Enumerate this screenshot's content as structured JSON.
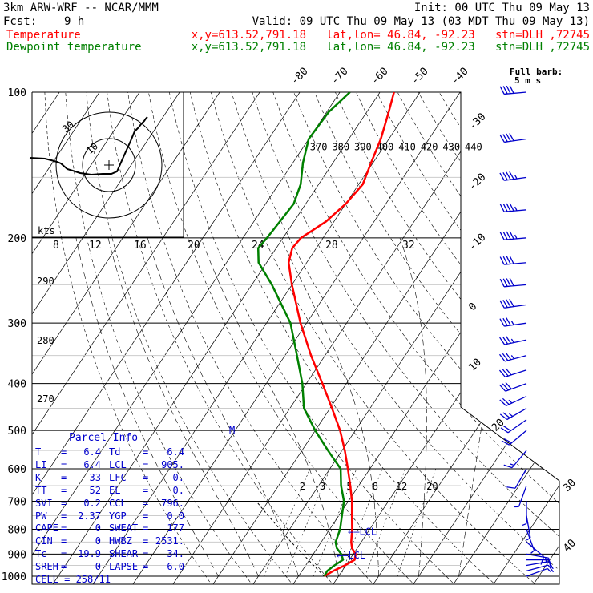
{
  "header": {
    "model": "3km ARW-WRF -- NCAR/MMM",
    "init": "Init: 00 UTC Thu 09 May 13",
    "fcst_label": "Fcst:",
    "fcst_value": "9 h",
    "valid": "Valid: 09 UTC Thu 09 May 13 (03 MDT Thu 09 May 13)",
    "temp_label": "Temperature",
    "dew_label": "Dewpoint temperature",
    "location": "x,y=613.52,791.18   lat,lon= 46.84, -92.23   stn=DLH ,72745"
  },
  "colors": {
    "temperature": "#ff0000",
    "dewpoint": "#008000",
    "hodograph": "#000000",
    "barbs": "#0000cc",
    "parcel_info": "#0000cc"
  },
  "chart_data": {
    "type": "skew-t",
    "pressure_levels": [
      100,
      200,
      300,
      400,
      500,
      600,
      700,
      800,
      900,
      1000
    ],
    "temperature_ticks": [
      -80,
      -70,
      -60,
      -50,
      -40,
      -30,
      -20,
      -10,
      0,
      10,
      20,
      30,
      40
    ],
    "theta_labels": [
      370,
      380,
      390,
      400,
      410,
      420,
      430,
      440
    ],
    "theta_labels_left": [
      290,
      280,
      270
    ],
    "mixing_ratio_labels": [
      2,
      3,
      5,
      8,
      12,
      20
    ],
    "hodo_speed_labels": [
      8,
      12,
      16,
      20,
      24,
      28,
      32
    ],
    "hodo_unit": "kts",
    "hodo_ring_labels": [
      "10",
      "30"
    ],
    "barb_title": "Full barb:",
    "barb_unit": "5 m s",
    "lcl_label": "LCL",
    "m_label": "M",
    "temperature": {
      "name": "Temperature",
      "points": [
        [
          1000,
          6.4
        ],
        [
          975,
          7.8
        ],
        [
          950,
          9.8
        ],
        [
          925,
          11.3
        ],
        [
          900,
          10.6
        ],
        [
          875,
          8.7
        ],
        [
          850,
          7.5
        ],
        [
          800,
          5.6
        ],
        [
          750,
          3.3
        ],
        [
          700,
          0.9
        ],
        [
          650,
          -2.1
        ],
        [
          600,
          -5.5
        ],
        [
          550,
          -9.3
        ],
        [
          500,
          -13.8
        ],
        [
          450,
          -19.5
        ],
        [
          400,
          -26.0
        ],
        [
          350,
          -33.5
        ],
        [
          300,
          -41.5
        ],
        [
          250,
          -50.0
        ],
        [
          225,
          -54.5
        ],
        [
          210,
          -56.0
        ],
        [
          200,
          -55.5
        ],
        [
          185,
          -52.0
        ],
        [
          170,
          -50.0
        ],
        [
          155,
          -49.0
        ],
        [
          140,
          -50.5
        ],
        [
          125,
          -52.0
        ],
        [
          110,
          -54.5
        ],
        [
          100,
          -56.5
        ]
      ]
    },
    "dewpoint": {
      "name": "Dewpoint temperature",
      "points": [
        [
          1000,
          6.4
        ],
        [
          975,
          6.3
        ],
        [
          950,
          7.2
        ],
        [
          925,
          8.4
        ],
        [
          900,
          7.0
        ],
        [
          875,
          4.9
        ],
        [
          850,
          3.6
        ],
        [
          800,
          2.6
        ],
        [
          750,
          0.8
        ],
        [
          700,
          -1.1
        ],
        [
          650,
          -4.4
        ],
        [
          600,
          -7.3
        ],
        [
          550,
          -13.5
        ],
        [
          500,
          -20.0
        ],
        [
          450,
          -26.5
        ],
        [
          400,
          -31.0
        ],
        [
          350,
          -37.0
        ],
        [
          300,
          -44.0
        ],
        [
          250,
          -55.0
        ],
        [
          225,
          -62.0
        ],
        [
          210,
          -64.5
        ],
        [
          200,
          -64.0
        ],
        [
          185,
          -63.5
        ],
        [
          170,
          -63.0
        ],
        [
          155,
          -64.5
        ],
        [
          140,
          -67.5
        ],
        [
          125,
          -70.0
        ],
        [
          110,
          -69.5
        ],
        [
          100,
          -67.5
        ]
      ]
    },
    "parcel": [
      [
        1000,
        6.4
      ],
      [
        950,
        2.0
      ],
      [
        900,
        -2.6
      ],
      [
        850,
        -7.5
      ],
      [
        800,
        -12.4
      ],
      [
        750,
        -17.6
      ],
      [
        700,
        -23.0
      ]
    ],
    "lcl_pressure": [
      905,
      810
    ],
    "hodograph": [
      [
        -99,
        -9
      ],
      [
        -80,
        -8
      ],
      [
        -72,
        -6
      ],
      [
        -65,
        -4
      ],
      [
        -60,
        -2
      ],
      [
        -52,
        5
      ],
      [
        -42,
        8
      ],
      [
        -36,
        10
      ],
      [
        -22,
        12
      ],
      [
        -8,
        11
      ],
      [
        3,
        11
      ],
      [
        10,
        8
      ],
      [
        18,
        -10
      ],
      [
        27,
        -30
      ],
      [
        32,
        -42
      ],
      [
        37,
        -47
      ],
      [
        40,
        -51
      ],
      [
        44,
        -55
      ],
      [
        46,
        -58
      ],
      [
        48,
        -60
      ]
    ],
    "wind_barbs": [
      {
        "p": 100,
        "dir": 265,
        "spd": 40
      },
      {
        "p": 125,
        "dir": 262,
        "spd": 42
      },
      {
        "p": 150,
        "dir": 262,
        "spd": 45
      },
      {
        "p": 175,
        "dir": 265,
        "spd": 45
      },
      {
        "p": 200,
        "dir": 265,
        "spd": 45
      },
      {
        "p": 225,
        "dir": 265,
        "spd": 42
      },
      {
        "p": 250,
        "dir": 265,
        "spd": 40
      },
      {
        "p": 275,
        "dir": 262,
        "spd": 40
      },
      {
        "p": 300,
        "dir": 262,
        "spd": 37
      },
      {
        "p": 325,
        "dir": 258,
        "spd": 35
      },
      {
        "p": 350,
        "dir": 255,
        "spd": 35
      },
      {
        "p": 375,
        "dir": 252,
        "spd": 32
      },
      {
        "p": 400,
        "dir": 250,
        "spd": 30
      },
      {
        "p": 425,
        "dir": 245,
        "spd": 28
      },
      {
        "p": 450,
        "dir": 240,
        "spd": 25
      },
      {
        "p": 475,
        "dir": 235,
        "spd": 22
      },
      {
        "p": 500,
        "dir": 230,
        "spd": 20
      },
      {
        "p": 550,
        "dir": 220,
        "spd": 15
      },
      {
        "p": 600,
        "dir": 210,
        "spd": 10
      },
      {
        "p": 650,
        "dir": 200,
        "spd": 7
      },
      {
        "p": 700,
        "dir": 180,
        "spd": 5
      },
      {
        "p": 750,
        "dir": 170,
        "spd": 5
      },
      {
        "p": 800,
        "dir": 160,
        "spd": 5
      },
      {
        "p": 850,
        "dir": 130,
        "spd": 12
      },
      {
        "p": 900,
        "dir": 100,
        "spd": 15
      },
      {
        "p": 925,
        "dir": 90,
        "spd": 15
      },
      {
        "p": 950,
        "dir": 80,
        "spd": 12
      },
      {
        "p": 975,
        "dir": 75,
        "spd": 10
      },
      {
        "p": 1000,
        "dir": 70,
        "spd": 8
      }
    ]
  },
  "parcel_info": {
    "title": "Parcel Info",
    "rows": [
      [
        "T",
        "6.4",
        "Td",
        "6.4"
      ],
      [
        "LI",
        "6.4",
        "LCL",
        "905."
      ],
      [
        "K",
        "33",
        "LFC",
        "0."
      ],
      [
        "TT",
        "52",
        "EL",
        "0."
      ],
      [
        "SVI",
        "0.2",
        "CCL",
        "796."
      ],
      [
        "PW",
        "2.37",
        "YGP",
        "0.0"
      ],
      [
        "CAPE",
        "0",
        "SWEAT",
        "177"
      ],
      [
        "CIN",
        "0",
        "HWBZ",
        "2531."
      ],
      [
        "Tc",
        "19.9",
        "SHEAR",
        "34."
      ],
      [
        "SREH",
        "0",
        "LAPSE",
        "6.0"
      ]
    ],
    "cell": "CELL = 258/11"
  }
}
